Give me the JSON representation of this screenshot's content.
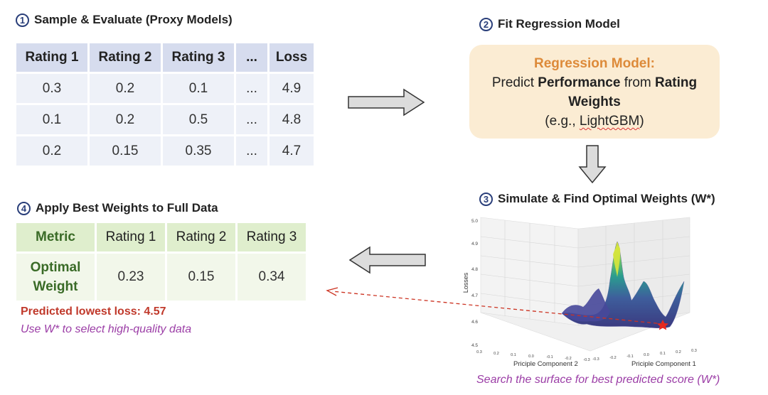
{
  "step1": {
    "number": "1",
    "title": "Sample & Evaluate (Proxy Models)",
    "headers": [
      "Rating 1",
      "Rating 2",
      "Rating 3",
      "...",
      "Loss"
    ],
    "rows": [
      [
        "0.3",
        "0.2",
        "0.1",
        "...",
        "4.9"
      ],
      [
        "0.1",
        "0.2",
        "0.5",
        "...",
        "4.8"
      ],
      [
        "0.2",
        "0.15",
        "0.35",
        "...",
        "4.7"
      ]
    ]
  },
  "step2": {
    "number": "2",
    "title": "Fit Regression Model",
    "box_title": "Regression Model:",
    "line1_pre": "Predict ",
    "line1_bold": "Performance",
    "line1_mid": " from ",
    "line1_bold2": "Rating",
    "line2_bold": "Weights",
    "line3_pre": "(e.g., ",
    "line3_underlined": "LightGBM",
    "line3_post": ")"
  },
  "step3": {
    "number": "3",
    "title": "Simulate & Find Optimal Weights (W*)",
    "caption": "Search the surface for best predicted score (W*)"
  },
  "step4": {
    "number": "4",
    "title": "Apply Best Weights to Full Data",
    "headers": [
      "Metric",
      "Rating 1",
      "Rating 2",
      "Rating 3"
    ],
    "row_label_line1": "Optimal",
    "row_label_line2": "Weight",
    "values": [
      "0.23",
      "0.15",
      "0.34"
    ],
    "predicted_note": "Predicted lowest loss: 4.57",
    "use_note": "Use W* to select high-quality data"
  },
  "chart_data": {
    "type": "surface3d",
    "title": "",
    "zlabel": "Losses",
    "xlabel": "Priciple Component 1",
    "ylabel": "Priciple Component 2",
    "z_ticks": [
      "4.5",
      "4.6",
      "4.7",
      "4.8",
      "4.9",
      "5.0"
    ],
    "x_ticks": [
      "-0.3",
      "-0.2",
      "-0.1",
      "0.0",
      "0.1",
      "0.2",
      "0.3"
    ],
    "y_ticks": [
      "0.3",
      "0.2",
      "0.1",
      "0.0",
      "-0.1",
      "-0.2",
      "-0.3"
    ],
    "zlim": [
      4.5,
      5.0
    ],
    "colormap": "viridis",
    "optimum_marker": "red-star",
    "colors": {
      "surface_low": "#3b3a80",
      "surface_mid": "#2a9d8f",
      "surface_high": "#e4e83a",
      "marker": "#e8281e"
    }
  },
  "colors": {
    "circle": "#2a3f7a",
    "table1_header": "#d6dcee",
    "table1_cell": "#eef1f8",
    "table2_header": "#dfeecd",
    "table2_cell": "#f2f7ea",
    "reg_box": "#fbecd3",
    "reg_title": "#dd8a39",
    "arrow_fill": "#dcdcdc",
    "dashed_arrow": "#cc3322",
    "purple": "#9b3da6"
  }
}
